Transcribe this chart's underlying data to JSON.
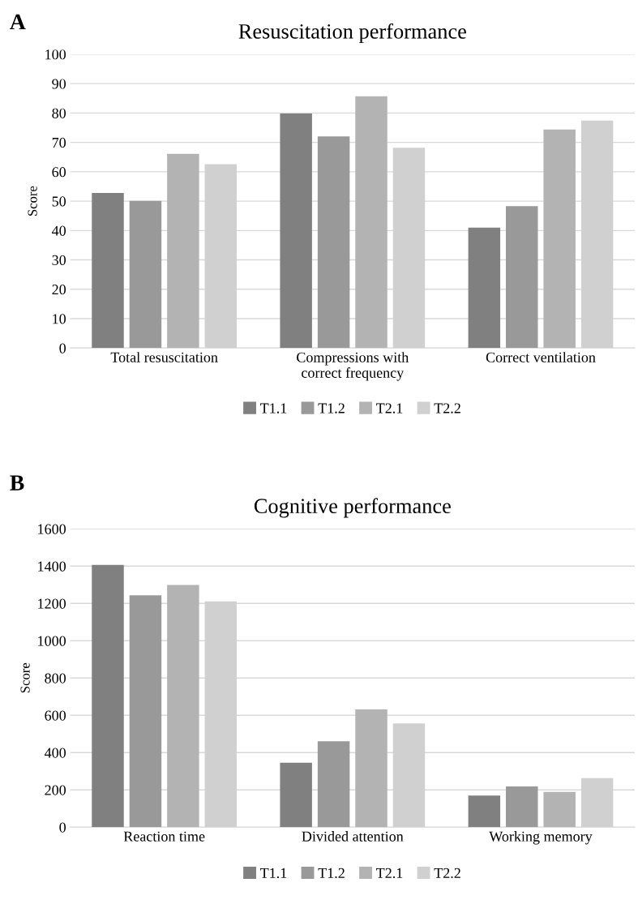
{
  "chart_data": [
    {
      "type": "bar",
      "title": "Resuscitation performance",
      "ylabel": "Score",
      "annotations": [
        "A"
      ],
      "categories": [
        "Total resuscitation",
        "Compressions with\ncorrect frequency",
        "Correct ventilation"
      ],
      "series": [
        {
          "name": "T1.1",
          "color": "#808080",
          "values": [
            52.8,
            79.8,
            41.0
          ]
        },
        {
          "name": "T1.2",
          "color": "#999999",
          "values": [
            50.1,
            72.0,
            48.3
          ]
        },
        {
          "name": "T2.1",
          "color": "#b3b3b3",
          "values": [
            66.1,
            85.7,
            74.4
          ]
        },
        {
          "name": "T2.2",
          "color": "#d0d0d0",
          "values": [
            62.6,
            68.2,
            77.4
          ]
        }
      ],
      "ylim": [
        0,
        100
      ],
      "yticks": [
        0,
        10,
        20,
        30,
        40,
        50,
        60,
        70,
        80,
        90,
        100
      ],
      "grid": "y",
      "legend": "bottom"
    },
    {
      "type": "bar",
      "title": "Cognitive performance",
      "ylabel": "Score",
      "annotations": [
        "B"
      ],
      "categories": [
        "Reaction time",
        "Divided attention",
        "Working memory"
      ],
      "series": [
        {
          "name": "T1.1",
          "color": "#808080",
          "values": [
            1407,
            346,
            169
          ]
        },
        {
          "name": "T1.2",
          "color": "#999999",
          "values": [
            1243,
            461,
            218
          ]
        },
        {
          "name": "T2.1",
          "color": "#b3b3b3",
          "values": [
            1299,
            631,
            189
          ]
        },
        {
          "name": "T2.2",
          "color": "#d0d0d0",
          "values": [
            1211,
            557,
            263
          ]
        }
      ],
      "ylim": [
        0,
        1600
      ],
      "yticks": [
        0,
        200,
        400,
        600,
        800,
        1000,
        1200,
        1400,
        1600
      ],
      "grid": "y",
      "legend": "bottom"
    }
  ]
}
